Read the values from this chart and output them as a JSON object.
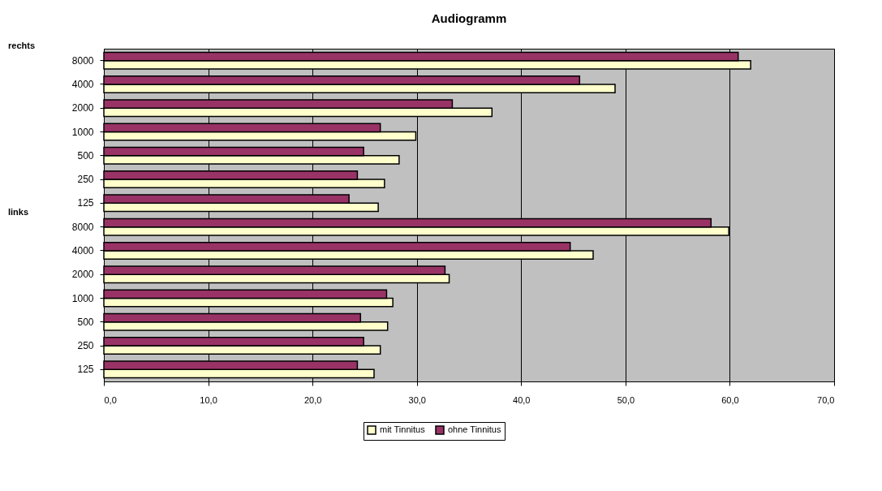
{
  "chart_data": {
    "type": "bar",
    "orientation": "horizontal",
    "title": "Audiogramm",
    "categories": [
      "8000",
      "4000",
      "2000",
      "1000",
      "500",
      "250",
      "125",
      "8000",
      "4000",
      "2000",
      "1000",
      "500",
      "250",
      "125"
    ],
    "annotations": [
      "rechts",
      "links"
    ],
    "series": [
      {
        "name": "mit Tinnitus",
        "color": "#ffffcc",
        "values": [
          62.0,
          49.0,
          37.2,
          29.9,
          28.3,
          26.9,
          26.3,
          59.9,
          46.9,
          33.1,
          27.7,
          27.2,
          26.5,
          25.9
        ]
      },
      {
        "name": "ohne Tinnitus",
        "color": "#993366",
        "values": [
          60.8,
          45.6,
          33.4,
          26.5,
          24.9,
          24.3,
          23.5,
          58.2,
          44.7,
          32.7,
          27.1,
          24.6,
          24.9,
          24.3
        ]
      }
    ],
    "xlim": [
      0,
      70
    ],
    "xticks": [
      {
        "value": 0,
        "label": "0,0"
      },
      {
        "value": 10,
        "label": "10,0"
      },
      {
        "value": 20,
        "label": "20,0"
      },
      {
        "value": 30,
        "label": "30,0"
      },
      {
        "value": 40,
        "label": "40,0"
      },
      {
        "value": 50,
        "label": "50,0"
      },
      {
        "value": 60,
        "label": "60,0"
      },
      {
        "value": 70,
        "label": "70,0"
      }
    ],
    "grid": "x",
    "legend": "bottom"
  }
}
